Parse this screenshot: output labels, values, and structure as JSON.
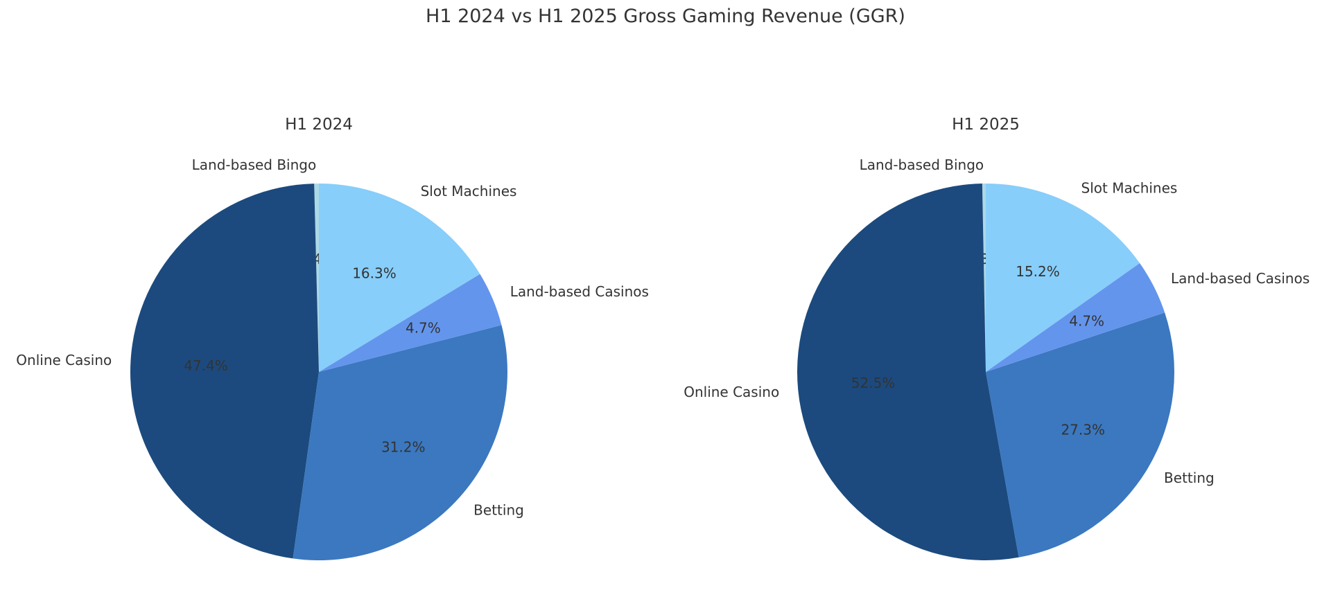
{
  "title": "H1 2024 vs H1 2025 Gross Gaming Revenue (GGR)",
  "chart_data": [
    {
      "type": "pie",
      "title": "H1 2024",
      "start_angle": 90,
      "direction": "counterclockwise",
      "labels": [
        "Land-based Bingo",
        "Online Casino",
        "Betting",
        "Land-based Casinos",
        "Slot Machines"
      ],
      "values": [
        0.4,
        47.4,
        31.2,
        4.7,
        16.3
      ],
      "display_labels": [
        "0.4%",
        "47.4%",
        "31.2%",
        "4.7%",
        "16.3%"
      ],
      "colors": [
        "#add8e6",
        "#1c4a7e",
        "#3b78bf",
        "#6495ed",
        "#87cefa"
      ]
    },
    {
      "type": "pie",
      "title": "H1 2025",
      "start_angle": 90,
      "direction": "counterclockwise",
      "labels": [
        "Land-based Bingo",
        "Online Casino",
        "Betting",
        "Land-based Casinos",
        "Slot Machines"
      ],
      "values": [
        0.3,
        52.5,
        27.3,
        4.7,
        15.2
      ],
      "display_labels": [
        "0.3%",
        "52.5%",
        "27.3%",
        "4.7%",
        "15.2%"
      ],
      "colors": [
        "#add8e6",
        "#1c4a7e",
        "#3b78bf",
        "#6495ed",
        "#87cefa"
      ]
    }
  ]
}
